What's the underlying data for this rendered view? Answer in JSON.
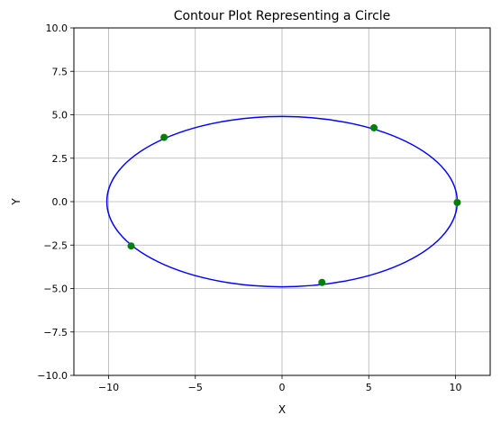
{
  "chart_data": {
    "type": "line",
    "title": "Contour Plot Representing a Circle",
    "xlabel": "X",
    "ylabel": "Y",
    "xlim": [
      -12,
      12
    ],
    "ylim": [
      -10,
      10
    ],
    "x_ticks": [
      -10,
      -5,
      0,
      5,
      10
    ],
    "x_tick_labels": [
      "−10",
      "−5",
      "0",
      "5",
      "10"
    ],
    "y_ticks": [
      -10,
      -7.5,
      -5,
      -2.5,
      0,
      2.5,
      5,
      7.5,
      10
    ],
    "y_tick_labels": [
      "−10.0",
      "−7.5",
      "−5.0",
      "−2.5",
      "0.0",
      "2.5",
      "5.0",
      "7.5",
      "10.0"
    ],
    "grid": true,
    "series": [
      {
        "kind": "contour-ellipse",
        "color": "#0000ff",
        "center": [
          0,
          0
        ],
        "rx": 10.1,
        "ry": 4.9
      },
      {
        "kind": "scatter",
        "color": "#008000",
        "points": [
          {
            "x": 10.1,
            "y": -0.05
          },
          {
            "x": 5.3,
            "y": 4.25
          },
          {
            "x": -6.8,
            "y": 3.7
          },
          {
            "x": -8.7,
            "y": -2.55
          },
          {
            "x": 2.3,
            "y": -4.65
          }
        ]
      }
    ]
  }
}
